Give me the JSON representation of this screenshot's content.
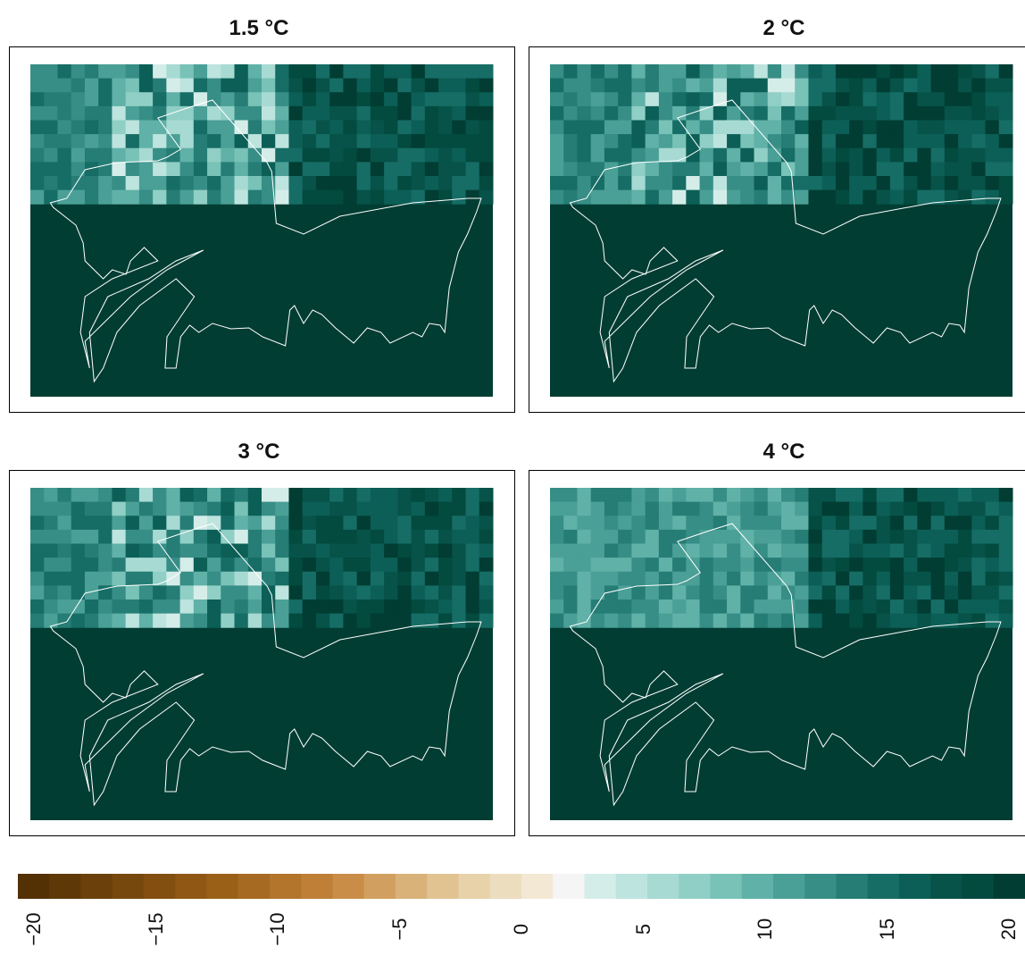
{
  "chart_data": {
    "type": "heatmap",
    "panels": [
      {
        "title": "1.5 °C"
      },
      {
        "title": "2 °C"
      },
      {
        "title": "3 °C"
      },
      {
        "title": "4 °C"
      }
    ],
    "colorbar": {
      "range": [
        -20,
        20
      ],
      "ticks": [
        -20,
        -15,
        -10,
        -5,
        0,
        5,
        10,
        15,
        20
      ],
      "tick_labels": [
        "−20",
        "−15",
        "−10",
        "−5",
        "0",
        "5",
        "10",
        "15",
        "20"
      ],
      "colors": [
        "#543005",
        "#5f3807",
        "#6b400a",
        "#77480d",
        "#834f10",
        "#8f5713",
        "#9b6018",
        "#a76a22",
        "#b3742c",
        "#bf7f37",
        "#c98d47",
        "#d1a060",
        "#d9b27a",
        "#e1c391",
        "#e7d2a9",
        "#edddbf",
        "#f2e8d4",
        "#f5f5f5",
        "#d5ede9",
        "#bde4de",
        "#a7dad3",
        "#90cfc5",
        "#78c2b7",
        "#60b1a7",
        "#4a9f96",
        "#378e86",
        "#257d75",
        "#166d65",
        "#0c5f56",
        "#075349",
        "#034a3f",
        "#013d33"
      ],
      "colormap": "BrBG"
    },
    "colors": {
      "darkest": "#013d33",
      "land_outline": "#ffffff"
    }
  }
}
